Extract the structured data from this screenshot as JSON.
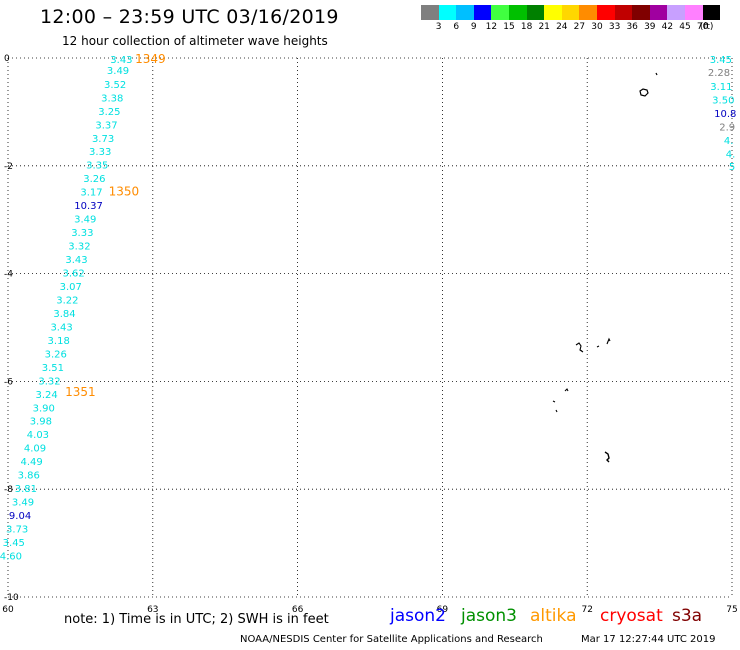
{
  "title": "12:00 – 23:59 UTC 03/16/2019",
  "subtitle": "12 hour collection of altimeter wave heights",
  "legend": {
    "unit": "(ft)",
    "bins": [
      {
        "label": "3",
        "color": "#7f7f7f"
      },
      {
        "label": "6",
        "color": "#00ffff"
      },
      {
        "label": "9",
        "color": "#00bfff"
      },
      {
        "label": "12",
        "color": "#0000ff"
      },
      {
        "label": "15",
        "color": "#40ff40"
      },
      {
        "label": "18",
        "color": "#00c000"
      },
      {
        "label": "21",
        "color": "#008000"
      },
      {
        "label": "24",
        "color": "#ffff00"
      },
      {
        "label": "27",
        "color": "#ffd700"
      },
      {
        "label": "30",
        "color": "#ff8c00"
      },
      {
        "label": "33",
        "color": "#ff0000"
      },
      {
        "label": "36",
        "color": "#c00000"
      },
      {
        "label": "39",
        "color": "#800000"
      },
      {
        "label": "42",
        "color": "#a000a0"
      },
      {
        "label": "45",
        "color": "#c8a0ff"
      },
      {
        "label": "70",
        "color": "#ff80ff"
      },
      {
        "label": "",
        "color": "#000000"
      }
    ]
  },
  "axes": {
    "lon_ticks": [
      "60",
      "63",
      "66",
      "69",
      "72",
      "75"
    ],
    "lat_ticks": [
      "0",
      "-2",
      "-4",
      "-6",
      "-8",
      "-10"
    ],
    "lon_range": [
      60,
      75
    ],
    "lat_range": [
      -10,
      0
    ]
  },
  "tracks": [
    {
      "id": "altika-west",
      "points": [
        {
          "lat": -0.02,
          "lon": 62.35,
          "v": "3.43",
          "color": "#00e0e0"
        },
        {
          "lat": -0.22,
          "lon": 62.28,
          "v": "3.49",
          "color": "#00e0e0"
        },
        {
          "lat": -0.48,
          "lon": 62.22,
          "v": "3.52",
          "color": "#00e0e0"
        },
        {
          "lat": -0.73,
          "lon": 62.16,
          "v": "3.38",
          "color": "#00e0e0"
        },
        {
          "lat": -0.98,
          "lon": 62.1,
          "v": "3.25",
          "color": "#00e0e0"
        },
        {
          "lat": -1.23,
          "lon": 62.04,
          "v": "3.37",
          "color": "#00e0e0"
        },
        {
          "lat": -1.48,
          "lon": 61.97,
          "v": "3.73",
          "color": "#00e0e0"
        },
        {
          "lat": -1.73,
          "lon": 61.91,
          "v": "3.33",
          "color": "#00e0e0"
        },
        {
          "lat": -1.98,
          "lon": 61.85,
          "v": "3.35",
          "color": "#00e0e0"
        },
        {
          "lat": -2.23,
          "lon": 61.79,
          "v": "3.26",
          "color": "#00e0e0"
        },
        {
          "lat": -2.48,
          "lon": 61.73,
          "v": "3.17",
          "color": "#00e0e0"
        },
        {
          "lat": -2.73,
          "lon": 61.67,
          "v": "10.37",
          "color": "#0000c0"
        },
        {
          "lat": -2.98,
          "lon": 61.6,
          "v": "3.49",
          "color": "#00e0e0"
        },
        {
          "lat": -3.23,
          "lon": 61.54,
          "v": "3.33",
          "color": "#00e0e0"
        },
        {
          "lat": -3.48,
          "lon": 61.48,
          "v": "3.32",
          "color": "#00e0e0"
        },
        {
          "lat": -3.73,
          "lon": 61.42,
          "v": "3.43",
          "color": "#00e0e0"
        },
        {
          "lat": -3.98,
          "lon": 61.36,
          "v": "3.62",
          "color": "#00e0e0"
        },
        {
          "lat": -4.23,
          "lon": 61.3,
          "v": "3.07",
          "color": "#00e0e0"
        },
        {
          "lat": -4.48,
          "lon": 61.23,
          "v": "3.22",
          "color": "#00e0e0"
        },
        {
          "lat": -4.73,
          "lon": 61.17,
          "v": "3.84",
          "color": "#00e0e0"
        },
        {
          "lat": -4.98,
          "lon": 61.11,
          "v": "3.43",
          "color": "#00e0e0"
        },
        {
          "lat": -5.23,
          "lon": 61.05,
          "v": "3.18",
          "color": "#00e0e0"
        },
        {
          "lat": -5.48,
          "lon": 60.99,
          "v": "3.26",
          "color": "#00e0e0"
        },
        {
          "lat": -5.73,
          "lon": 60.93,
          "v": "3.51",
          "color": "#00e0e0"
        },
        {
          "lat": -5.98,
          "lon": 60.86,
          "v": "3.32",
          "color": "#00e0e0"
        },
        {
          "lat": -6.23,
          "lon": 60.8,
          "v": "3.24",
          "color": "#00e0e0"
        },
        {
          "lat": -6.48,
          "lon": 60.74,
          "v": "3.90",
          "color": "#00e0e0"
        },
        {
          "lat": -6.73,
          "lon": 60.68,
          "v": "3.98",
          "color": "#00e0e0"
        },
        {
          "lat": -6.98,
          "lon": 60.62,
          "v": "4.03",
          "color": "#00e0e0"
        },
        {
          "lat": -7.23,
          "lon": 60.56,
          "v": "4.09",
          "color": "#00e0e0"
        },
        {
          "lat": -7.48,
          "lon": 60.49,
          "v": "4.49",
          "color": "#00e0e0"
        },
        {
          "lat": -7.73,
          "lon": 60.43,
          "v": "3.86",
          "color": "#00e0e0"
        },
        {
          "lat": -7.98,
          "lon": 60.37,
          "v": "3.81",
          "color": "#00e0e0"
        },
        {
          "lat": -8.23,
          "lon": 60.31,
          "v": "3.49",
          "color": "#00e0e0"
        },
        {
          "lat": -8.48,
          "lon": 60.25,
          "v": "9.04",
          "color": "#0000c0"
        },
        {
          "lat": -8.73,
          "lon": 60.19,
          "v": "3.73",
          "color": "#00e0e0"
        },
        {
          "lat": -8.98,
          "lon": 60.12,
          "v": "3.45",
          "color": "#00e0e0"
        },
        {
          "lat": -9.23,
          "lon": 60.06,
          "v": "4.60",
          "color": "#00e0e0"
        }
      ]
    },
    {
      "id": "east-edge",
      "points": [
        {
          "lat": -0.02,
          "lon": 74.77,
          "v": "3.45",
          "color": "#00e0e0"
        },
        {
          "lat": -0.26,
          "lon": 74.73,
          "v": "2.28",
          "color": "#7f7f7f"
        },
        {
          "lat": -0.52,
          "lon": 74.78,
          "v": "3.11",
          "color": "#00e0e0"
        },
        {
          "lat": -0.77,
          "lon": 74.82,
          "v": "3.50",
          "color": "#00e0e0"
        },
        {
          "lat": -1.02,
          "lon": 74.86,
          "v": "10.8",
          "color": "#0000c0"
        },
        {
          "lat": -1.27,
          "lon": 74.9,
          "v": "2.9",
          "color": "#7f7f7f"
        },
        {
          "lat": -1.52,
          "lon": 74.93,
          "v": "4.",
          "color": "#00e0e0"
        },
        {
          "lat": -1.77,
          "lon": 74.97,
          "v": "4.",
          "color": "#00e0e0"
        },
        {
          "lat": -2.0,
          "lon": 75.0,
          "v": "5",
          "color": "#00e0e0"
        }
      ]
    }
  ],
  "time_labels": [
    {
      "text": "1349",
      "lat": -0.02,
      "lon": 62.95,
      "color": "#ff8c00"
    },
    {
      "text": "1350",
      "lat": -2.48,
      "lon": 62.4,
      "color": "#ff8c00"
    },
    {
      "text": "1351",
      "lat": -6.2,
      "lon": 61.5,
      "color": "#ff8c00"
    }
  ],
  "footer": {
    "note": "note:  1) Time is in UTC;  2) SWH is in feet",
    "missions": [
      {
        "name": "jason2",
        "color": "#0000ff"
      },
      {
        "name": "jason3",
        "color": "#009000"
      },
      {
        "name": "altika",
        "color": "#ff9900"
      },
      {
        "name": "cryosat",
        "color": "#ff0000"
      },
      {
        "name": "s3a",
        "color": "#800000"
      }
    ],
    "credit": "NOAA/NESDIS Center for Satellite Applications and Research",
    "timestamp": "Mar 17 12:27:44 UTC 2019"
  }
}
